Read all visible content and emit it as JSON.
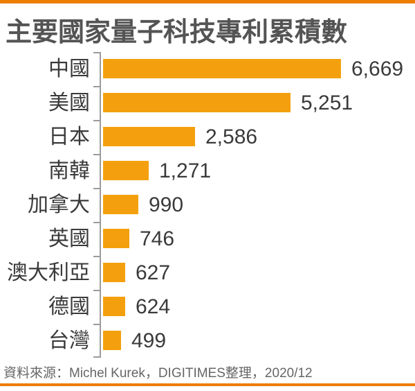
{
  "header": {
    "title": "主要國家量子科技專利累積數"
  },
  "footer": {
    "source": "資料來源：Michel Kurek，DIGITIMES整理，2020/12"
  },
  "colors": {
    "accent_border": "#ED7D00",
    "bar": "#F4A00E",
    "axis": "#9B9B9B",
    "title_text": "#545454",
    "label_text": "#3A3A3A",
    "source_text": "#666666"
  },
  "chart_data": {
    "type": "bar",
    "orientation": "horizontal",
    "title": "主要國家量子科技專利累積數",
    "categories": [
      "中國",
      "美國",
      "日本",
      "南韓",
      "加拿大",
      "英國",
      "澳大利亞",
      "德國",
      "台灣"
    ],
    "values": [
      6669,
      5251,
      2586,
      1271,
      990,
      746,
      627,
      624,
      499
    ],
    "value_labels": [
      "6,669",
      "5,251",
      "2,586",
      "1,271",
      "990",
      "746",
      "627",
      "624",
      "499"
    ],
    "xlim": [
      0,
      6669
    ],
    "grid": false,
    "legend": false,
    "value_label_position": "right-of-bar",
    "bar_color": "#F4A00E",
    "source": "資料來源：Michel Kurek，DIGITIMES整理，2020/12"
  }
}
